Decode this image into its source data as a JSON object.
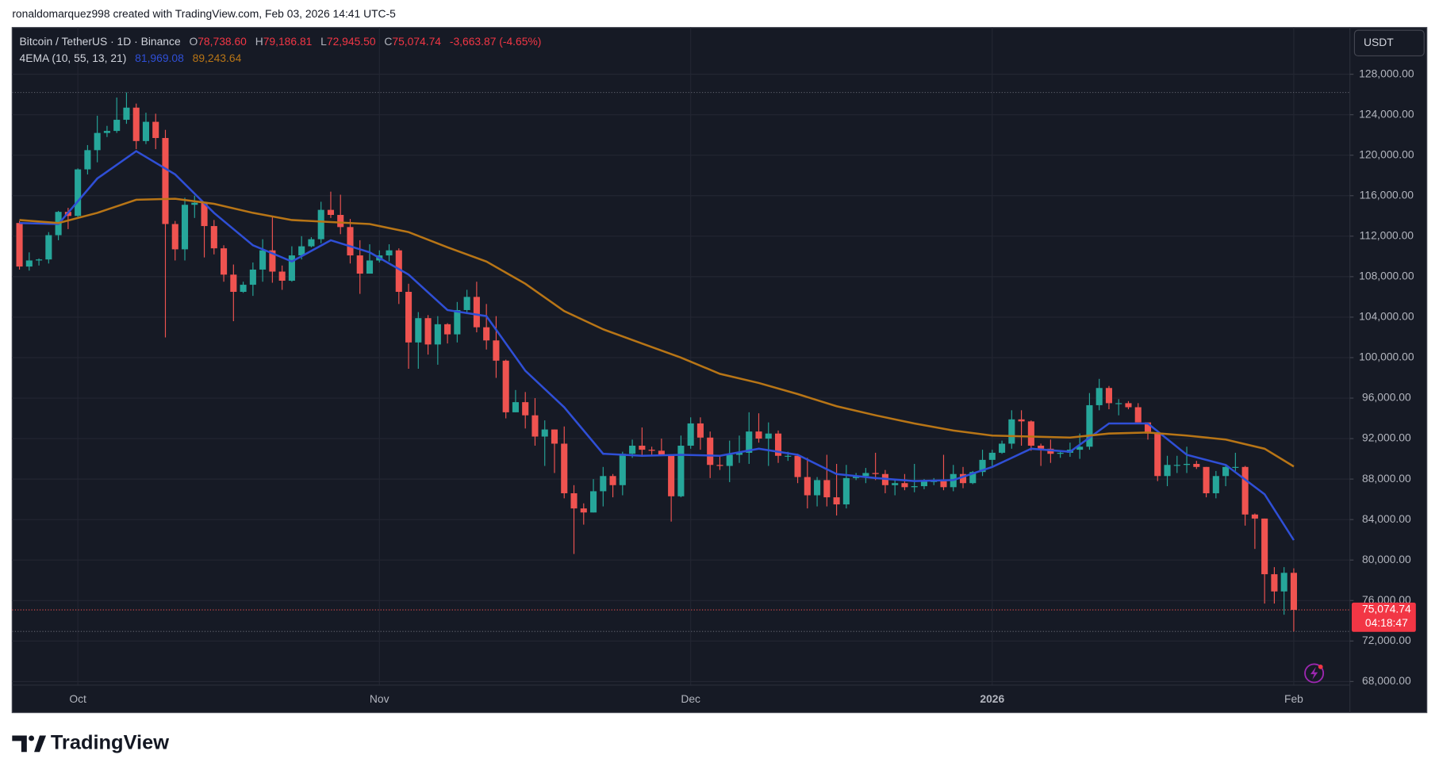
{
  "header": {
    "credit": "ronaldomarquez998 created with TradingView.com, Feb 03, 2026 14:41 UTC-5"
  },
  "footer": {
    "logo": "TradingView"
  },
  "chart_data": {
    "type": "candlestick",
    "currency": "USDT",
    "categories": [
      null,
      null,
      null,
      null,
      null,
      null,
      "Oct",
      null,
      null,
      null,
      null,
      null,
      null,
      null,
      null,
      null,
      null,
      null,
      null,
      null,
      null,
      null,
      null,
      null,
      null,
      null,
      null,
      null,
      null,
      null,
      null,
      null,
      null,
      null,
      null,
      null,
      null,
      "Nov",
      null,
      null,
      null,
      null,
      null,
      null,
      null,
      null,
      null,
      null,
      null,
      null,
      null,
      null,
      null,
      null,
      null,
      null,
      null,
      null,
      null,
      null,
      null,
      null,
      null,
      null,
      null,
      null,
      null,
      null,
      null,
      "Dec",
      null,
      null,
      null,
      null,
      null,
      null,
      null,
      null,
      null,
      null,
      null,
      null,
      null,
      null,
      null,
      null,
      null,
      null,
      null,
      null,
      null,
      null,
      null,
      null,
      null,
      null,
      null,
      null,
      null,
      null,
      "2026",
      null,
      null,
      null,
      null,
      null,
      null,
      null,
      null,
      null,
      null,
      null,
      null,
      null,
      null,
      null,
      null,
      null,
      null,
      null,
      null,
      null,
      null,
      null,
      null,
      null,
      null,
      null,
      null,
      null,
      null,
      "Feb",
      null,
      null
    ],
    "series": [
      {
        "name": "Bitcoin / TetherUS · 1D · Binance",
        "up_color": "#26a69a",
        "down_color": "#ef5350",
        "open": [
          113300,
          109000,
          109600,
          109700,
          112100,
          114400,
          114000,
          118600,
          120500,
          122200,
          122400,
          123500,
          124700,
          121400,
          123300,
          121700,
          113200,
          110700,
          115100,
          115300,
          113000,
          110800,
          108200,
          106500,
          107200,
          108700,
          110600,
          108500,
          107600,
          110100,
          111000,
          111700,
          114600,
          114100,
          112900,
          110100,
          108300,
          109600,
          110100,
          110600,
          106500,
          101500,
          103900,
          101300,
          103300,
          102300,
          104700,
          106000,
          103000,
          101700,
          99700,
          94600,
          95600,
          94300,
          92200,
          92900,
          91500,
          86600,
          85100,
          84700,
          86800,
          88300,
          87400,
          90500,
          91300,
          90900,
          90800,
          90400,
          86300,
          91300,
          93500,
          92100,
          89400,
          89300,
          90400,
          90600,
          92700,
          92000,
          92500,
          90300,
          90300,
          88200,
          86400,
          87900,
          86200,
          85500,
          88100,
          88300,
          88600,
          88500,
          87400,
          87600,
          87200,
          87300,
          87800,
          87800,
          87200,
          88500,
          87600,
          88700,
          89900,
          90600,
          91500,
          93900,
          93700,
          91300,
          91000,
          90500,
          90600,
          90900,
          91200,
          95300,
          97000,
          95500,
          95500,
          95100,
          93600,
          92500,
          88300,
          89400,
          89400,
          89500,
          89200,
          86600,
          88300,
          89200,
          89200,
          84500,
          84100,
          78600,
          76900,
          78738.6
        ],
        "high": [
          113500,
          110400,
          109800,
          112400,
          114500,
          114800,
          118700,
          121000,
          123900,
          122900,
          125700,
          126200,
          125100,
          124200,
          124100,
          122500,
          113500,
          115800,
          116000,
          115400,
          113600,
          111100,
          109200,
          107500,
          109400,
          111700,
          114000,
          109100,
          111000,
          112000,
          111900,
          115400,
          116400,
          116100,
          113700,
          111600,
          111200,
          110600,
          111200,
          110800,
          107300,
          104500,
          104200,
          104100,
          103400,
          105500,
          106700,
          107500,
          105300,
          104100,
          99800,
          96800,
          96600,
          96000,
          93800,
          92900,
          93200,
          87400,
          85600,
          88000,
          89200,
          88500,
          90700,
          91900,
          93100,
          91200,
          92000,
          90400,
          92300,
          94100,
          94100,
          92700,
          90300,
          91800,
          92300,
          94600,
          94500,
          93600,
          92800,
          90700,
          90500,
          90100,
          88200,
          90400,
          89500,
          89400,
          88600,
          89100,
          90600,
          88900,
          88000,
          88500,
          89500,
          88000,
          88100,
          90400,
          89400,
          89200,
          88800,
          90900,
          90900,
          91800,
          94800,
          94800,
          93800,
          91500,
          91900,
          90800,
          91600,
          92500,
          96500,
          97900,
          97200,
          95900,
          95700,
          95500,
          93600,
          92800,
          90300,
          90300,
          91200,
          89800,
          89200,
          88800,
          89400,
          90600,
          89300,
          84600,
          84100,
          79300,
          79300,
          79186.81
        ],
        "low": [
          108700,
          108600,
          109100,
          109300,
          111600,
          112700,
          113900,
          118100,
          119300,
          121800,
          122200,
          123100,
          120600,
          121100,
          120600,
          102000,
          109600,
          109600,
          113800,
          109900,
          110200,
          107500,
          103600,
          106400,
          106100,
          107500,
          107400,
          106700,
          107500,
          109700,
          110900,
          111300,
          113800,
          112200,
          109300,
          106300,
          108300,
          109400,
          109500,
          105300,
          98900,
          98900,
          100300,
          99300,
          101400,
          101500,
          104300,
          102500,
          100800,
          98000,
          94000,
          94600,
          93000,
          91300,
          89300,
          88600,
          86100,
          80600,
          83500,
          84700,
          85300,
          86200,
          86400,
          90100,
          90200,
          90300,
          90300,
          83800,
          86200,
          91000,
          90900,
          88100,
          88900,
          87700,
          89600,
          89500,
          91600,
          89300,
          89600,
          89800,
          87600,
          85100,
          85300,
          85300,
          84400,
          85100,
          87900,
          87600,
          87900,
          86600,
          86400,
          86900,
          86700,
          87000,
          87400,
          86900,
          86800,
          87100,
          87500,
          88300,
          89300,
          90500,
          91000,
          91300,
          90800,
          89300,
          89600,
          90100,
          90200,
          90000,
          90900,
          94800,
          94900,
          94300,
          94900,
          93600,
          91900,
          87800,
          87300,
          88600,
          88600,
          89000,
          86200,
          86100,
          87300,
          88800,
          83400,
          81100,
          75700,
          75700,
          74600,
          72945.5
        ],
        "close": [
          109000,
          109600,
          109700,
          112100,
          114400,
          114000,
          118600,
          120500,
          122200,
          122400,
          123500,
          124700,
          121400,
          123300,
          121700,
          113200,
          110700,
          115100,
          115300,
          113000,
          110800,
          108200,
          106500,
          107200,
          108700,
          110600,
          108500,
          107600,
          110100,
          111000,
          111700,
          114600,
          114100,
          112900,
          110100,
          108300,
          109600,
          110100,
          110600,
          106500,
          101500,
          103900,
          101300,
          103300,
          102300,
          104700,
          106000,
          103000,
          101700,
          99700,
          94600,
          95600,
          94300,
          92200,
          92900,
          91500,
          86600,
          85100,
          84700,
          86800,
          88300,
          87400,
          90500,
          91300,
          90900,
          90800,
          90400,
          86300,
          91300,
          93500,
          92100,
          89400,
          89300,
          90400,
          90600,
          92700,
          92000,
          92500,
          90300,
          90300,
          88200,
          86400,
          87900,
          86200,
          85500,
          88100,
          88300,
          88600,
          88500,
          87400,
          87600,
          87200,
          87300,
          87800,
          87800,
          87200,
          88500,
          87600,
          88700,
          89900,
          90600,
          91500,
          93900,
          93700,
          91300,
          91000,
          90500,
          90600,
          90900,
          91200,
          95300,
          97000,
          95500,
          95500,
          95100,
          93600,
          92500,
          88300,
          89400,
          89400,
          89500,
          89200,
          86600,
          88300,
          89200,
          89200,
          84500,
          84100,
          78600,
          76900,
          78738.6,
          75074.74
        ],
        "last_label": "75,074.74",
        "countdown": "04:18:47",
        "legend": [
          {
            "key": "O",
            "label": "78,738.60"
          },
          {
            "key": "H",
            "label": "79,186.81"
          },
          {
            "key": "L",
            "label": "72,945.50"
          },
          {
            "key": "C",
            "label": "75,074.74"
          }
        ],
        "change": "-3,663.87 (-4.65%)"
      }
    ],
    "indicator": {
      "label": "4EMA (10, 55, 13, 21)",
      "lines": [
        {
          "color": "#2f4fd6",
          "value_label": "81,969.08",
          "x": [
            0,
            4,
            8,
            12,
            16,
            20,
            24,
            28,
            32,
            36,
            40,
            44,
            48,
            52,
            56,
            60,
            64,
            68,
            72,
            76,
            80,
            84,
            88,
            92,
            96,
            100,
            104,
            108,
            112,
            116,
            120,
            124,
            128,
            131
          ],
          "values": [
            113300,
            113200,
            117700,
            120400,
            118100,
            114300,
            111100,
            109500,
            111600,
            110400,
            108200,
            104700,
            104100,
            98700,
            95100,
            90500,
            90300,
            90400,
            90300,
            91000,
            90400,
            88500,
            88100,
            87800,
            87900,
            89200,
            91000,
            90700,
            93500,
            93500,
            90400,
            89400,
            86500,
            81969.08
          ]
        },
        {
          "color": "#b87516",
          "value_label": "89,243.64",
          "x": [
            0,
            4,
            8,
            12,
            16,
            20,
            24,
            28,
            32,
            36,
            40,
            44,
            48,
            52,
            56,
            60,
            64,
            68,
            72,
            76,
            80,
            84,
            88,
            92,
            96,
            100,
            104,
            108,
            112,
            116,
            120,
            124,
            128,
            131
          ],
          "values": [
            113600,
            113300,
            114300,
            115600,
            115700,
            115200,
            114300,
            113600,
            113400,
            113200,
            112400,
            110900,
            109500,
            107300,
            104600,
            102800,
            101400,
            100000,
            98400,
            97500,
            96400,
            95200,
            94300,
            93500,
            92800,
            92300,
            92200,
            92100,
            92500,
            92600,
            92300,
            91900,
            91000,
            89243.64
          ]
        }
      ]
    },
    "ylim": [
      67640,
      132620
    ],
    "yticks": [
      {
        "value": 68000,
        "label": "68,000.00"
      },
      {
        "value": 72000,
        "label": "72,000.00"
      },
      {
        "value": 76000,
        "label": "76,000.00"
      },
      {
        "value": 80000,
        "label": "80,000.00"
      },
      {
        "value": 84000,
        "label": "84,000.00"
      },
      {
        "value": 88000,
        "label": "88,000.00"
      },
      {
        "value": 92000,
        "label": "92,000.00"
      },
      {
        "value": 96000,
        "label": "96,000.00"
      },
      {
        "value": 100000,
        "label": "100,000.00"
      },
      {
        "value": 104000,
        "label": "104,000.00"
      },
      {
        "value": 108000,
        "label": "108,000.00"
      },
      {
        "value": 112000,
        "label": "112,000.00"
      },
      {
        "value": 116000,
        "label": "116,000.00"
      },
      {
        "value": 120000,
        "label": "120,000.00"
      },
      {
        "value": 124000,
        "label": "124,000.00"
      },
      {
        "value": 128000,
        "label": "128,000.00"
      }
    ],
    "grid": true
  }
}
